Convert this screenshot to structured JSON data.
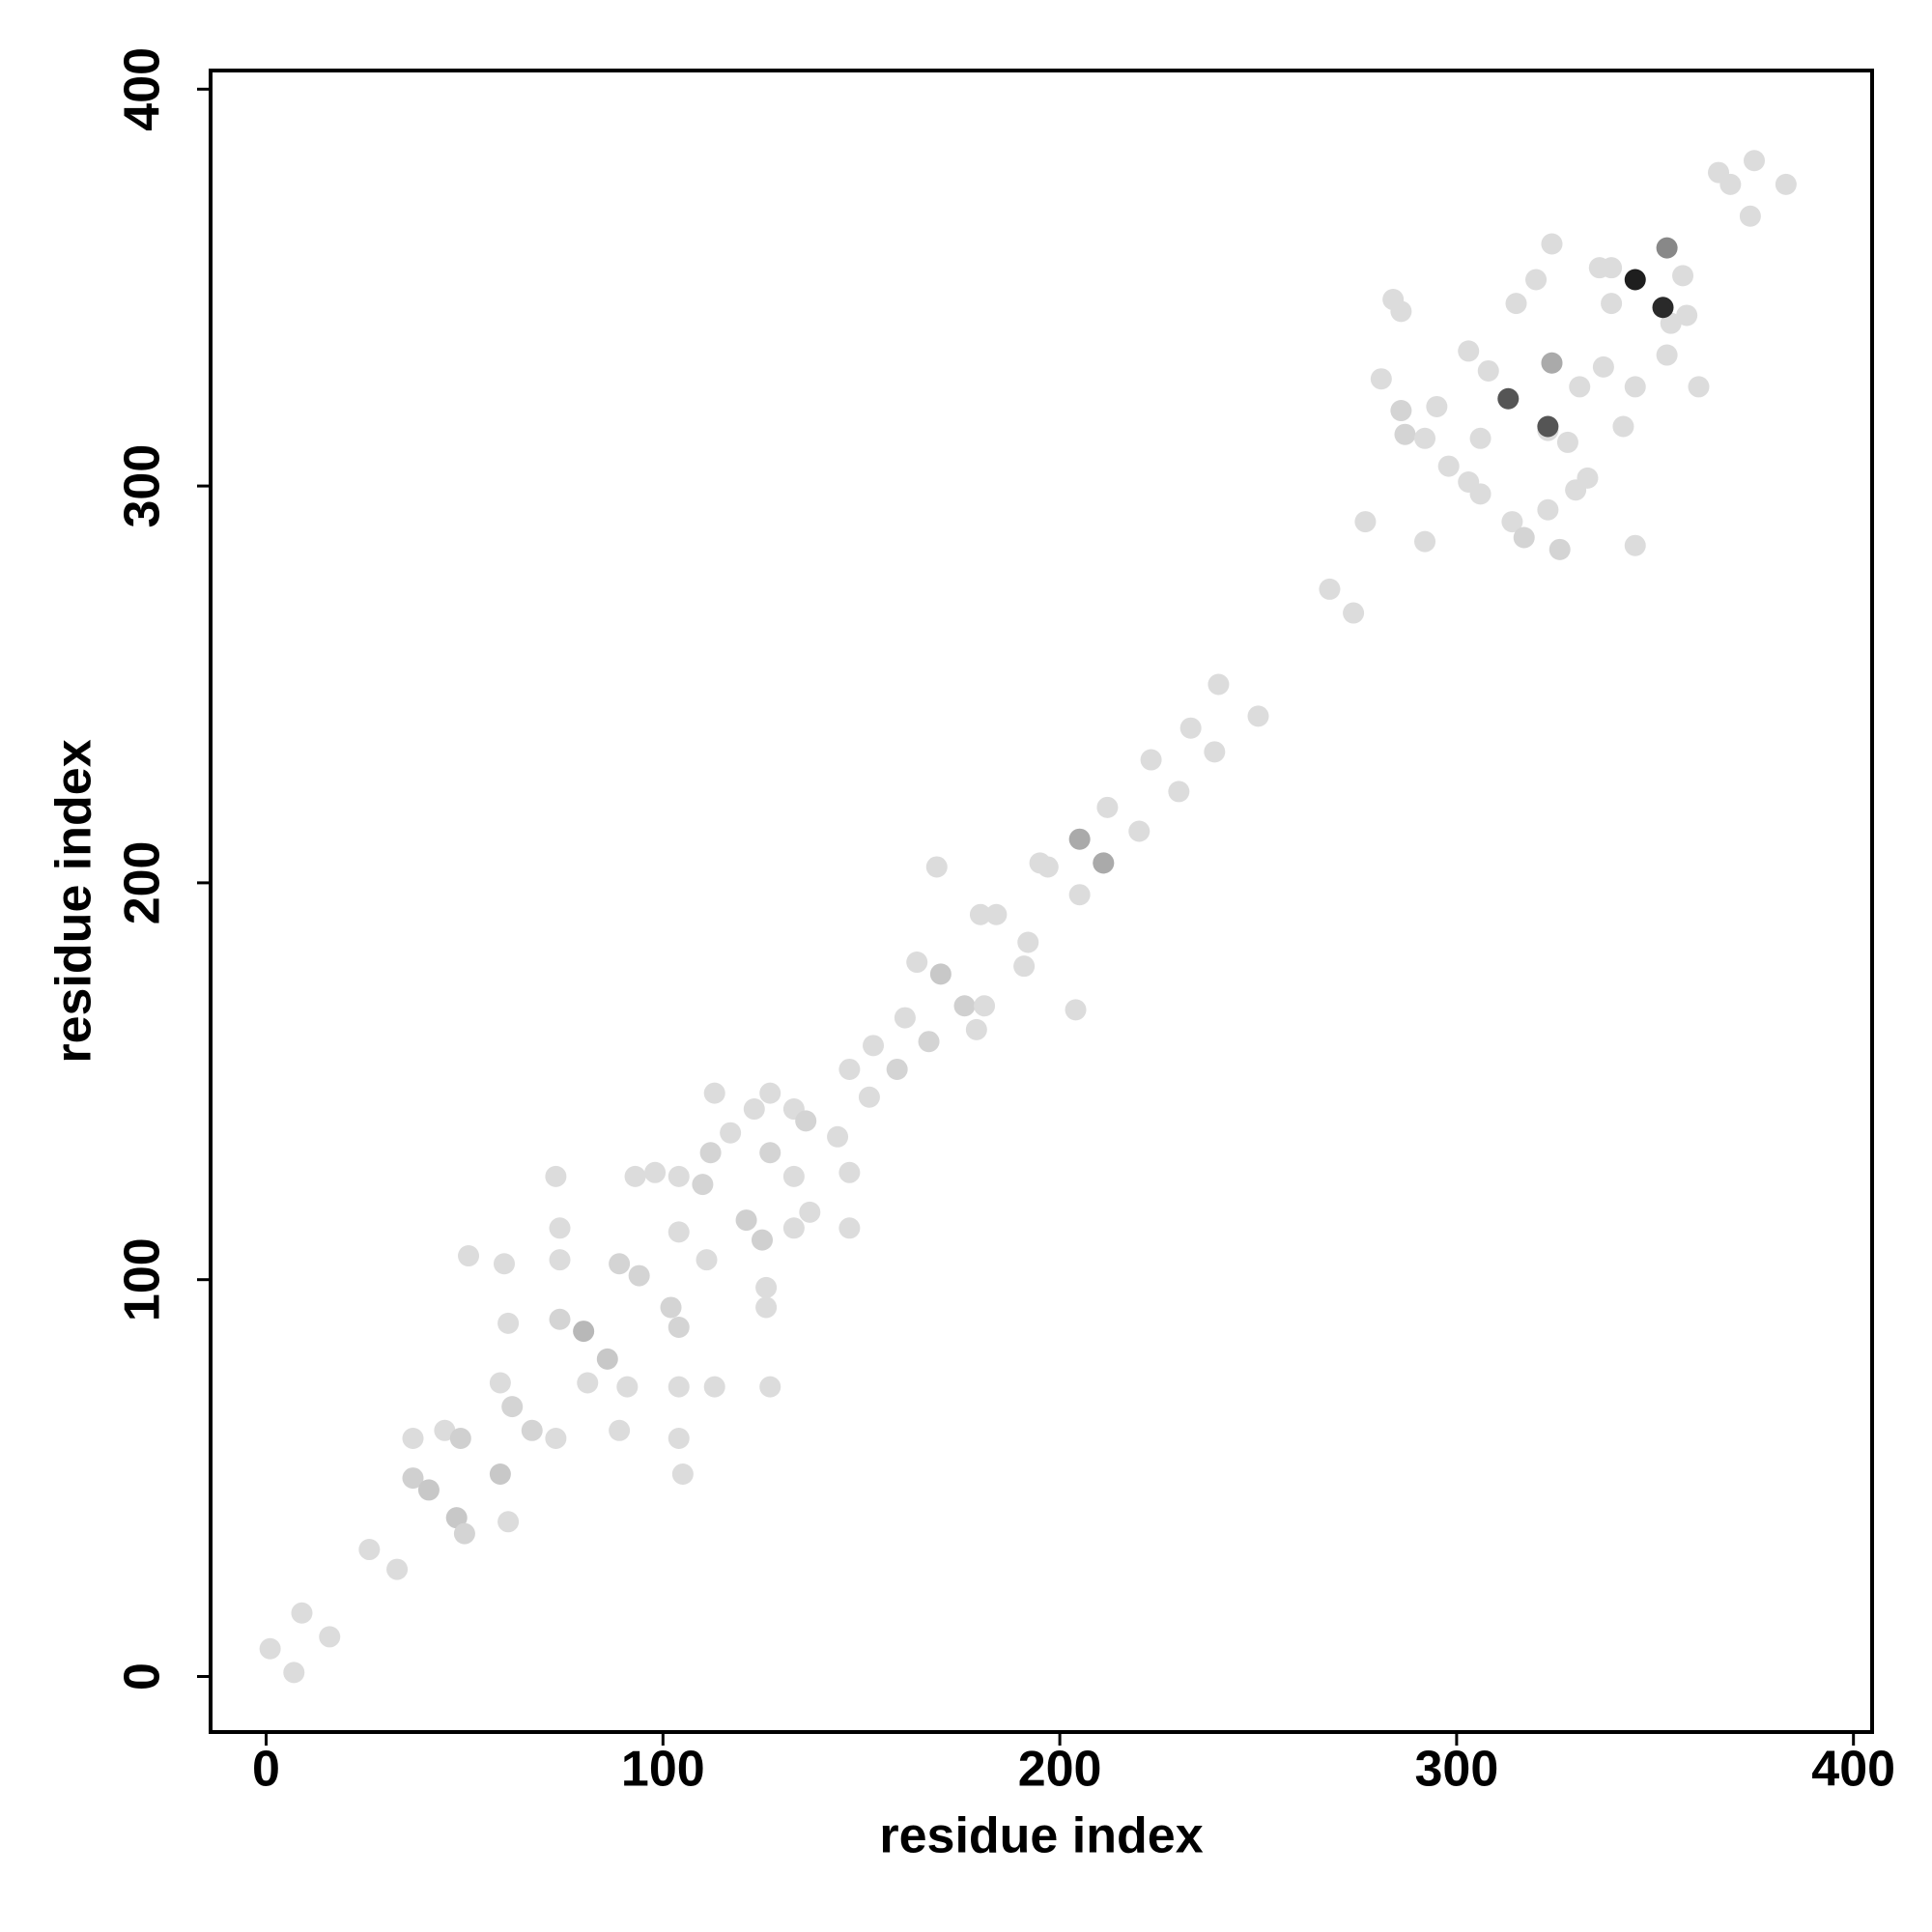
{
  "chart_data": {
    "type": "scatter",
    "xlabel": "residue index",
    "ylabel": "residue index",
    "xlim": [
      -14,
      404.7
    ],
    "ylim": [
      -14,
      404.7
    ],
    "xticks": [
      0,
      100,
      200,
      300,
      400
    ],
    "yticks": [
      0,
      100,
      200,
      300,
      400
    ],
    "x": [
      1,
      7,
      9,
      16,
      26,
      33,
      37,
      37,
      41,
      45,
      48,
      50,
      51,
      49,
      59,
      61,
      60,
      61,
      59,
      62,
      67,
      73,
      73,
      74,
      74,
      74,
      80,
      81,
      86,
      89,
      91,
      89,
      94,
      93,
      98,
      102,
      104,
      104,
      104,
      105,
      104,
      104,
      110,
      112,
      111,
      113,
      113,
      117,
      121,
      125,
      126,
      126,
      127,
      127,
      123,
      133,
      133,
      127,
      133,
      137,
      136,
      144,
      147,
      147,
      147,
      152,
      153,
      159,
      161,
      167,
      169,
      164,
      170,
      176,
      179,
      181,
      180,
      184,
      191,
      192,
      195,
      197,
      205,
      204,
      211,
      212,
      220,
      223,
      230,
      233,
      239,
      240,
      250,
      268,
      274,
      284,
      286,
      281,
      286,
      287,
      292,
      295,
      298,
      303,
      306,
      303,
      308,
      315,
      320,
      323,
      324,
      324,
      323,
      314,
      326,
      317,
      306,
      277,
      292,
      330,
      333,
      328,
      336,
      339,
      357,
      361,
      345,
      342,
      353,
      354,
      358,
      339,
      337,
      345,
      331,
      369,
      374,
      375,
      383,
      366,
      345,
      352,
      313,
      323,
      353,
      205,
      211,
      324
    ],
    "values": [
      7,
      1,
      16,
      10,
      32,
      27,
      60,
      50,
      47,
      62,
      40,
      36,
      106,
      60,
      51,
      39,
      104,
      89,
      74,
      68,
      62,
      60,
      126,
      113,
      105,
      90,
      87,
      74,
      80,
      104,
      73,
      62,
      101,
      126,
      127,
      93,
      88,
      73,
      60,
      51,
      112,
      126,
      124,
      132,
      105,
      73,
      147,
      137,
      115,
      110,
      98,
      93,
      73,
      147,
      143,
      143,
      126,
      132,
      113,
      117,
      140,
      136,
      127,
      113,
      153,
      146,
      159,
      153,
      166,
      160,
      204,
      180,
      177,
      169,
      163,
      169,
      192,
      192,
      179,
      185,
      205,
      204,
      197,
      168,
      205,
      219,
      213,
      231,
      223,
      239,
      233,
      250,
      242,
      274,
      268,
      347,
      344,
      327,
      319,
      313,
      312,
      320,
      305,
      301,
      312,
      334,
      329,
      346,
      352,
      314,
      331,
      361,
      294,
      291,
      284,
      287,
      298,
      291,
      286,
      299,
      302,
      311,
      355,
      355,
      353,
      325,
      325,
      315,
      333,
      341,
      343,
      346,
      330,
      285,
      325,
      376,
      368,
      382,
      376,
      379,
      352,
      345,
      322,
      315,
      360,
      211,
      205,
      331
    ],
    "colors": [
      "#dcdcdc",
      "#dcdcdc",
      "#dcdcdc",
      "#dcdcdc",
      "#dcdcdc",
      "#dcdcdc",
      "#dcdcdc",
      "#d0d0d0",
      "#c8c8c8",
      "#dcdcdc",
      "#c8c8c8",
      "#d4d4d4",
      "#dcdcdc",
      "#d0d0d0",
      "#c8c8c8",
      "#dcdcdc",
      "#dcdcdc",
      "#dcdcdc",
      "#dcdcdc",
      "#d4d4d4",
      "#d4d4d4",
      "#dcdcdc",
      "#dcdcdc",
      "#dcdcdc",
      "#dcdcdc",
      "#d4d4d4",
      "#b8b8b8",
      "#dcdcdc",
      "#c8c8c8",
      "#d4d4d4",
      "#dcdcdc",
      "#dcdcdc",
      "#d4d4d4",
      "#dcdcdc",
      "#dcdcdc",
      "#d4d4d4",
      "#d4d4d4",
      "#dcdcdc",
      "#dcdcdc",
      "#dcdcdc",
      "#dcdcdc",
      "#dcdcdc",
      "#d4d4d4",
      "#d4d4d4",
      "#dcdcdc",
      "#dcdcdc",
      "#dcdcdc",
      "#dcdcdc",
      "#d0d0d0",
      "#d0d0d0",
      "#dcdcdc",
      "#dcdcdc",
      "#dcdcdc",
      "#dcdcdc",
      "#dcdcdc",
      "#dcdcdc",
      "#dcdcdc",
      "#d4d4d4",
      "#dcdcdc",
      "#dcdcdc",
      "#d4d4d4",
      "#dcdcdc",
      "#dcdcdc",
      "#dcdcdc",
      "#dcdcdc",
      "#dcdcdc",
      "#dcdcdc",
      "#d4d4d4",
      "#dcdcdc",
      "#d4d4d4",
      "#dcdcdc",
      "#dcdcdc",
      "#c8c8c8",
      "#d0d0d0",
      "#dcdcdc",
      "#dcdcdc",
      "#dcdcdc",
      "#dcdcdc",
      "#dcdcdc",
      "#dcdcdc",
      "#dcdcdc",
      "#dcdcdc",
      "#dcdcdc",
      "#dcdcdc",
      "#dcdcdc",
      "#dcdcdc",
      "#dcdcdc",
      "#dcdcdc",
      "#dcdcdc",
      "#dcdcdc",
      "#dcdcdc",
      "#dcdcdc",
      "#dcdcdc",
      "#dcdcdc",
      "#dcdcdc",
      "#dcdcdc",
      "#dcdcdc",
      "#dcdcdc",
      "#d4d4d4",
      "#d4d4d4",
      "#dcdcdc",
      "#dcdcdc",
      "#dcdcdc",
      "#dcdcdc",
      "#dcdcdc",
      "#dcdcdc",
      "#dcdcdc",
      "#dcdcdc",
      "#dcdcdc",
      "#dcdcdc",
      "#dcdcdc",
      "#dcdcdc",
      "#dcdcdc",
      "#dcdcdc",
      "#d4d4d4",
      "#d4d4d4",
      "#dcdcdc",
      "#dcdcdc",
      "#dcdcdc",
      "#dcdcdc",
      "#dcdcdc",
      "#dcdcdc",
      "#dcdcdc",
      "#dcdcdc",
      "#dcdcdc",
      "#dcdcdc",
      "#dcdcdc",
      "#dcdcdc",
      "#dcdcdc",
      "#dcdcdc",
      "#dcdcdc",
      "#dcdcdc",
      "#dcdcdc",
      "#dcdcdc",
      "#dcdcdc",
      "#dcdcdc",
      "#dcdcdc",
      "#dcdcdc",
      "#dcdcdc",
      "#dcdcdc",
      "#1e1e1e",
      "#2a2a2a",
      "#555555",
      "#555555",
      "#888888",
      "#aaaaaa",
      "#aaaaaa",
      "#aaaaaa"
    ]
  }
}
